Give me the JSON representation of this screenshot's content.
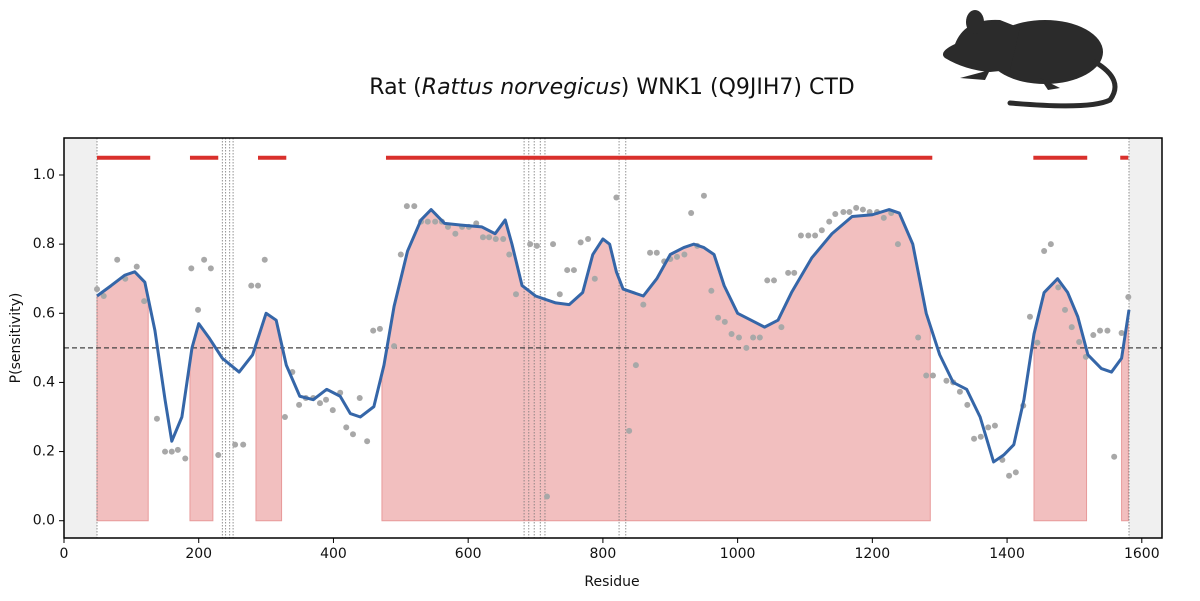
{
  "chart_data": {
    "type": "line",
    "title_segments": [
      "Rat (",
      "Rattus norvegicus",
      ") WNK1 (Q9JIH7) CTD"
    ],
    "x_label": "Residue",
    "y_label": "P(sensitivity)",
    "xlim": [
      0,
      1630
    ],
    "ylim": [
      -0.05,
      1.107
    ],
    "xticks": [
      0,
      200,
      400,
      600,
      800,
      1000,
      1200,
      1400,
      1600
    ],
    "yticks": [
      {
        "value": 0,
        "label": "0.0"
      },
      0.2,
      0.4,
      0.6,
      0.8,
      {
        "value": 1,
        "label": "1.0"
      }
    ],
    "threshold": 0.5,
    "masked_regions": [
      [
        0,
        49
      ],
      [
        1581,
        1630
      ]
    ],
    "vlines": [
      49,
      235,
      240,
      246,
      251,
      683,
      690,
      698,
      707,
      714,
      824,
      834,
      1581
    ],
    "bar_y": 1.05,
    "bar_regions": [
      [
        49,
        128
      ],
      [
        187,
        229
      ],
      [
        288,
        330
      ],
      [
        478,
        1289
      ],
      [
        1439,
        1519
      ],
      [
        1568,
        1580
      ]
    ],
    "fill_regions": [
      [
        49,
        125
      ],
      [
        187,
        221
      ],
      [
        285,
        323
      ],
      [
        472,
        1286
      ],
      [
        1440,
        1518
      ],
      [
        1570,
        1580
      ]
    ],
    "curve_color": "#3566a8",
    "fill_color": "#f2bfbf",
    "bar_color": "#d9302c",
    "point_color": "#a8a8a8",
    "x": [
      49,
      70,
      90,
      105,
      120,
      135,
      150,
      160,
      175,
      190,
      200,
      215,
      235,
      260,
      280,
      300,
      315,
      330,
      350,
      370,
      390,
      410,
      425,
      440,
      460,
      475,
      490,
      510,
      530,
      545,
      565,
      590,
      620,
      640,
      655,
      665,
      680,
      700,
      730,
      750,
      770,
      785,
      800,
      810,
      820,
      830,
      860,
      880,
      900,
      920,
      935,
      950,
      965,
      980,
      1000,
      1020,
      1040,
      1060,
      1080,
      1110,
      1140,
      1170,
      1200,
      1225,
      1240,
      1260,
      1280,
      1300,
      1320,
      1340,
      1360,
      1380,
      1395,
      1410,
      1425,
      1440,
      1455,
      1475,
      1490,
      1505,
      1520,
      1540,
      1555,
      1570,
      1581
    ],
    "values": [
      0.65,
      0.68,
      0.71,
      0.72,
      0.69,
      0.55,
      0.35,
      0.23,
      0.3,
      0.5,
      0.57,
      0.53,
      0.47,
      0.43,
      0.48,
      0.6,
      0.58,
      0.45,
      0.36,
      0.35,
      0.38,
      0.36,
      0.31,
      0.3,
      0.33,
      0.45,
      0.62,
      0.78,
      0.87,
      0.9,
      0.86,
      0.855,
      0.85,
      0.83,
      0.87,
      0.8,
      0.68,
      0.65,
      0.63,
      0.625,
      0.66,
      0.77,
      0.815,
      0.8,
      0.72,
      0.67,
      0.65,
      0.7,
      0.77,
      0.79,
      0.8,
      0.79,
      0.77,
      0.68,
      0.6,
      0.58,
      0.56,
      0.58,
      0.66,
      0.76,
      0.83,
      0.88,
      0.885,
      0.9,
      0.89,
      0.8,
      0.6,
      0.48,
      0.4,
      0.38,
      0.3,
      0.17,
      0.19,
      0.22,
      0.35,
      0.54,
      0.66,
      0.7,
      0.66,
      0.59,
      0.48,
      0.44,
      0.43,
      0.47,
      0.61
    ],
    "points": {
      "x": [
        49,
        59,
        79,
        91,
        108,
        119,
        138,
        150,
        160,
        169,
        180,
        189,
        199,
        208,
        218,
        229,
        254,
        266,
        278,
        288,
        298,
        328,
        339,
        349,
        359,
        370,
        380,
        389,
        399,
        410,
        419,
        429,
        439,
        450,
        459,
        469,
        490,
        500,
        509,
        520,
        530,
        540,
        551,
        561,
        570,
        581,
        591,
        601,
        612,
        622,
        631,
        641,
        652,
        661,
        671,
        692,
        702,
        717,
        726,
        736,
        747,
        757,
        767,
        778,
        788,
        820,
        839,
        849,
        860,
        870,
        880,
        891,
        900,
        910,
        921,
        931,
        940,
        950,
        961,
        971,
        981,
        991,
        1002,
        1013,
        1023,
        1033,
        1044,
        1054,
        1065,
        1075,
        1084,
        1094,
        1105,
        1115,
        1125,
        1136,
        1145,
        1157,
        1166,
        1176,
        1186,
        1196,
        1207,
        1217,
        1228,
        1238,
        1268,
        1280,
        1290,
        1310,
        1320,
        1330,
        1341,
        1351,
        1361,
        1372,
        1382,
        1393,
        1403,
        1413,
        1424,
        1434,
        1445,
        1455,
        1465,
        1476,
        1486,
        1496,
        1507,
        1517,
        1528,
        1538,
        1549,
        1559,
        1570,
        1580
      ],
      "y": [
        0.67,
        0.65,
        0.755,
        0.7,
        0.735,
        0.635,
        0.295,
        0.2,
        0.2,
        0.205,
        0.18,
        0.73,
        0.61,
        0.755,
        0.73,
        0.19,
        0.22,
        0.22,
        0.68,
        0.68,
        0.755,
        0.3,
        0.43,
        0.335,
        0.355,
        0.355,
        0.34,
        0.35,
        0.32,
        0.37,
        0.27,
        0.25,
        0.355,
        0.23,
        0.55,
        0.555,
        0.505,
        0.77,
        0.91,
        0.91,
        0.865,
        0.865,
        0.865,
        0.865,
        0.85,
        0.83,
        0.85,
        0.85,
        0.86,
        0.82,
        0.82,
        0.815,
        0.815,
        0.77,
        0.655,
        0.8,
        0.795,
        0.07,
        0.8,
        0.655,
        0.725,
        0.725,
        0.805,
        0.815,
        0.7,
        0.935,
        0.26,
        0.45,
        0.625,
        0.775,
        0.775,
        0.75,
        0.757,
        0.763,
        0.77,
        0.89,
        0.795,
        0.94,
        0.665,
        0.587,
        0.575,
        0.54,
        0.53,
        0.5,
        0.53,
        0.53,
        0.695,
        0.695,
        0.56,
        0.717,
        0.717,
        0.825,
        0.825,
        0.825,
        0.84,
        0.865,
        0.887,
        0.893,
        0.893,
        0.905,
        0.9,
        0.893,
        0.893,
        0.876,
        0.89,
        0.8,
        0.53,
        0.42,
        0.42,
        0.405,
        0.4,
        0.373,
        0.335,
        0.237,
        0.243,
        0.27,
        0.275,
        0.176,
        0.13,
        0.14,
        0.333,
        0.59,
        0.515,
        0.78,
        0.8,
        0.675,
        0.61,
        0.56,
        0.517,
        0.474,
        0.537,
        0.55,
        0.55,
        0.185,
        0.543,
        0.647
      ]
    }
  }
}
